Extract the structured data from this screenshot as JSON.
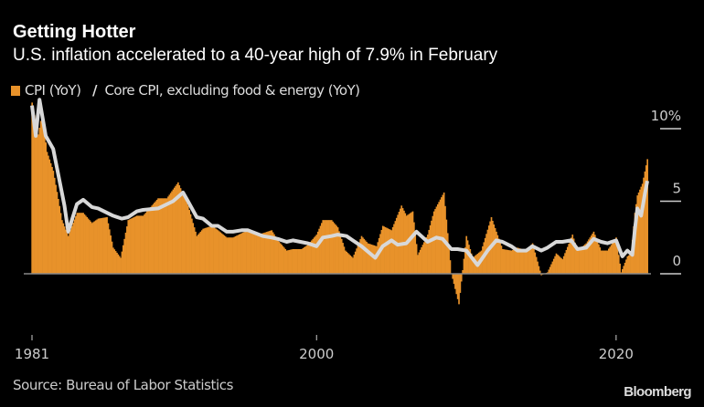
{
  "title": "Getting Hotter",
  "subtitle": "U.S. inflation accelerated to a 40-year high of 7.9% in February",
  "source": "Source: Bureau of Labor Statistics",
  "logo": "Bloomberg",
  "colors": {
    "cpi": "#e8922a",
    "core": "#d8d8d8",
    "background": "#000000"
  },
  "chart_data": {
    "type": "bar+line",
    "title": "Getting Hotter",
    "xlabel": "",
    "ylabel": "",
    "xlim": [
      "1981-01",
      "2022-02"
    ],
    "ylim": [
      -4,
      12
    ],
    "x_ticks": [
      "1981",
      "2000",
      "2020"
    ],
    "y_ticks": [
      {
        "value": 10,
        "label": "10%"
      },
      {
        "value": 5,
        "label": "5"
      },
      {
        "value": 0,
        "label": "0"
      }
    ],
    "grid": false,
    "legend": "top-left",
    "series": [
      {
        "name": "CPI (YoY)",
        "type": "bar",
        "points": [
          [
            "1981-01",
            11.8
          ],
          [
            "1981-06",
            9.6
          ],
          [
            "1981-09",
            11.0
          ],
          [
            "1982-01",
            8.4
          ],
          [
            "1982-06",
            7.1
          ],
          [
            "1983-01",
            3.7
          ],
          [
            "1983-06",
            2.6
          ],
          [
            "1984-01",
            4.2
          ],
          [
            "1984-06",
            4.2
          ],
          [
            "1985-01",
            3.5
          ],
          [
            "1985-06",
            3.8
          ],
          [
            "1986-01",
            3.9
          ],
          [
            "1986-06",
            1.8
          ],
          [
            "1986-12",
            1.1
          ],
          [
            "1987-06",
            3.7
          ],
          [
            "1988-01",
            4.0
          ],
          [
            "1988-06",
            4.0
          ],
          [
            "1989-01",
            4.7
          ],
          [
            "1989-06",
            5.2
          ],
          [
            "1990-01",
            5.2
          ],
          [
            "1990-10",
            6.3
          ],
          [
            "1991-06",
            4.7
          ],
          [
            "1992-01",
            2.6
          ],
          [
            "1992-06",
            3.1
          ],
          [
            "1993-01",
            3.3
          ],
          [
            "1993-06",
            3.0
          ],
          [
            "1994-01",
            2.5
          ],
          [
            "1994-06",
            2.5
          ],
          [
            "1995-01",
            2.8
          ],
          [
            "1995-06",
            3.0
          ],
          [
            "1996-01",
            2.7
          ],
          [
            "1996-06",
            2.8
          ],
          [
            "1997-01",
            3.0
          ],
          [
            "1997-06",
            2.3
          ],
          [
            "1998-01",
            1.6
          ],
          [
            "1998-06",
            1.7
          ],
          [
            "1999-01",
            1.7
          ],
          [
            "1999-06",
            2.0
          ],
          [
            "2000-01",
            2.7
          ],
          [
            "2000-06",
            3.7
          ],
          [
            "2001-01",
            3.7
          ],
          [
            "2001-06",
            3.2
          ],
          [
            "2001-12",
            1.6
          ],
          [
            "2002-06",
            1.1
          ],
          [
            "2003-01",
            2.6
          ],
          [
            "2003-06",
            2.1
          ],
          [
            "2004-01",
            1.9
          ],
          [
            "2004-06",
            3.3
          ],
          [
            "2005-01",
            3.0
          ],
          [
            "2005-09",
            4.7
          ],
          [
            "2006-01",
            4.0
          ],
          [
            "2006-06",
            4.3
          ],
          [
            "2006-10",
            1.3
          ],
          [
            "2007-06",
            2.7
          ],
          [
            "2007-11",
            4.3
          ],
          [
            "2008-07",
            5.6
          ],
          [
            "2009-01",
            0.0
          ],
          [
            "2009-07",
            -2.1
          ],
          [
            "2010-01",
            2.6
          ],
          [
            "2010-06",
            1.1
          ],
          [
            "2011-01",
            1.6
          ],
          [
            "2011-09",
            3.9
          ],
          [
            "2012-01",
            2.9
          ],
          [
            "2012-06",
            1.7
          ],
          [
            "2013-01",
            1.6
          ],
          [
            "2013-06",
            1.8
          ],
          [
            "2014-01",
            1.6
          ],
          [
            "2014-06",
            2.1
          ],
          [
            "2015-01",
            -0.1
          ],
          [
            "2015-06",
            0.1
          ],
          [
            "2016-01",
            1.4
          ],
          [
            "2016-06",
            1.0
          ],
          [
            "2017-02",
            2.7
          ],
          [
            "2017-06",
            1.6
          ],
          [
            "2018-01",
            2.1
          ],
          [
            "2018-07",
            2.9
          ],
          [
            "2019-01",
            1.6
          ],
          [
            "2019-06",
            1.6
          ],
          [
            "2020-01",
            2.5
          ],
          [
            "2020-05",
            0.1
          ],
          [
            "2020-10",
            1.2
          ],
          [
            "2021-01",
            1.4
          ],
          [
            "2021-04",
            4.2
          ],
          [
            "2021-06",
            5.4
          ],
          [
            "2021-10",
            6.2
          ],
          [
            "2022-02",
            7.9
          ]
        ]
      },
      {
        "name": "Core CPI, excluding food & energy (YoY)",
        "type": "line",
        "points": [
          [
            "1981-01",
            11.6
          ],
          [
            "1981-04",
            9.5
          ],
          [
            "1981-07",
            12.0
          ],
          [
            "1981-12",
            9.5
          ],
          [
            "1982-06",
            8.6
          ],
          [
            "1983-03",
            4.7
          ],
          [
            "1983-06",
            2.9
          ],
          [
            "1984-01",
            4.8
          ],
          [
            "1984-06",
            5.1
          ],
          [
            "1985-01",
            4.6
          ],
          [
            "1985-06",
            4.5
          ],
          [
            "1986-06",
            4.0
          ],
          [
            "1987-01",
            3.8
          ],
          [
            "1987-06",
            3.9
          ],
          [
            "1988-01",
            4.3
          ],
          [
            "1988-06",
            4.4
          ],
          [
            "1989-06",
            4.5
          ],
          [
            "1990-06",
            5.0
          ],
          [
            "1991-02",
            5.6
          ],
          [
            "1991-06",
            5.0
          ],
          [
            "1992-01",
            3.9
          ],
          [
            "1992-06",
            3.8
          ],
          [
            "1993-01",
            3.3
          ],
          [
            "1993-06",
            3.3
          ],
          [
            "1994-01",
            2.9
          ],
          [
            "1994-06",
            2.9
          ],
          [
            "1995-01",
            3.0
          ],
          [
            "1995-06",
            3.0
          ],
          [
            "1996-06",
            2.6
          ],
          [
            "1997-01",
            2.5
          ],
          [
            "1997-06",
            2.4
          ],
          [
            "1998-01",
            2.2
          ],
          [
            "1998-06",
            2.3
          ],
          [
            "1999-06",
            2.1
          ],
          [
            "2000-01",
            1.9
          ],
          [
            "2000-06",
            2.5
          ],
          [
            "2001-01",
            2.6
          ],
          [
            "2001-06",
            2.7
          ],
          [
            "2002-01",
            2.6
          ],
          [
            "2002-06",
            2.3
          ],
          [
            "2003-01",
            1.9
          ],
          [
            "2003-12",
            1.1
          ],
          [
            "2004-06",
            1.9
          ],
          [
            "2005-01",
            2.3
          ],
          [
            "2005-06",
            2.0
          ],
          [
            "2006-01",
            2.1
          ],
          [
            "2006-09",
            2.9
          ],
          [
            "2007-06",
            2.2
          ],
          [
            "2008-01",
            2.5
          ],
          [
            "2008-06",
            2.4
          ],
          [
            "2009-01",
            1.7
          ],
          [
            "2009-06",
            1.7
          ],
          [
            "2010-01",
            1.6
          ],
          [
            "2010-10",
            0.6
          ],
          [
            "2011-06",
            1.6
          ],
          [
            "2012-01",
            2.3
          ],
          [
            "2012-06",
            2.2
          ],
          [
            "2013-01",
            1.9
          ],
          [
            "2013-06",
            1.6
          ],
          [
            "2014-01",
            1.6
          ],
          [
            "2014-06",
            1.9
          ],
          [
            "2015-01",
            1.6
          ],
          [
            "2015-06",
            1.8
          ],
          [
            "2016-01",
            2.2
          ],
          [
            "2016-06",
            2.2
          ],
          [
            "2017-01",
            2.3
          ],
          [
            "2017-06",
            1.7
          ],
          [
            "2018-01",
            1.8
          ],
          [
            "2018-07",
            2.4
          ],
          [
            "2019-01",
            2.2
          ],
          [
            "2019-06",
            2.1
          ],
          [
            "2020-01",
            2.3
          ],
          [
            "2020-06",
            1.2
          ],
          [
            "2020-10",
            1.6
          ],
          [
            "2021-02",
            1.3
          ],
          [
            "2021-04",
            3.0
          ],
          [
            "2021-06",
            4.5
          ],
          [
            "2021-09",
            4.0
          ],
          [
            "2021-12",
            5.5
          ],
          [
            "2022-02",
            6.4
          ]
        ]
      }
    ]
  }
}
